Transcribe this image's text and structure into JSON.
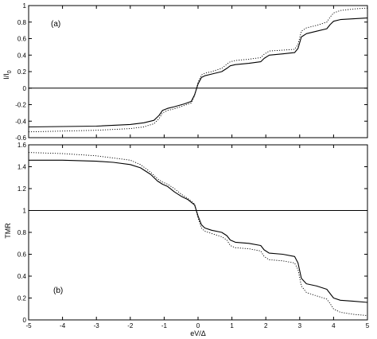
{
  "chart_data": [
    {
      "type": "line",
      "panel_label": "(a)",
      "xlabel": "",
      "ylabel": "I/I",
      "ylabel_subscript": "0",
      "xlim": [
        -5,
        5
      ],
      "ylim": [
        -0.6,
        1.0
      ],
      "x_ticks": [
        "-5",
        "-4",
        "-3",
        "-2",
        "-1",
        "0",
        "1",
        "2",
        "3",
        "4",
        "5"
      ],
      "y_ticks": [
        "-0.6",
        "-0.4",
        "-0.2",
        "0",
        "0.2",
        "0.4",
        "0.6",
        "0.8",
        "1"
      ],
      "grid": false,
      "reference_line_y": 0,
      "series": [
        {
          "style": "solid",
          "x": [
            -5,
            -4,
            -3,
            -2,
            -1.6,
            -1.3,
            -1.15,
            -1.05,
            -0.9,
            -0.7,
            -0.4,
            -0.2,
            -0.1,
            0,
            0.1,
            0.2,
            0.4,
            0.7,
            0.85,
            0.95,
            1.1,
            1.5,
            1.85,
            1.95,
            2.1,
            2.5,
            2.85,
            2.95,
            3.05,
            3.2,
            3.5,
            3.8,
            3.9,
            4.0,
            4.2,
            4.6,
            5
          ],
          "y": [
            -0.47,
            -0.465,
            -0.46,
            -0.44,
            -0.42,
            -0.39,
            -0.33,
            -0.27,
            -0.245,
            -0.225,
            -0.19,
            -0.16,
            -0.08,
            0.05,
            0.13,
            0.15,
            0.17,
            0.2,
            0.24,
            0.27,
            0.285,
            0.3,
            0.32,
            0.36,
            0.4,
            0.415,
            0.43,
            0.48,
            0.62,
            0.66,
            0.69,
            0.72,
            0.77,
            0.81,
            0.83,
            0.84,
            0.85
          ]
        },
        {
          "style": "dotted",
          "x": [
            -5,
            -4,
            -3,
            -2,
            -1.6,
            -1.3,
            -1.15,
            -1.05,
            -0.9,
            -0.7,
            -0.4,
            -0.2,
            -0.1,
            0,
            0.1,
            0.2,
            0.4,
            0.7,
            0.85,
            0.95,
            1.1,
            1.5,
            1.85,
            1.95,
            2.1,
            2.5,
            2.85,
            2.95,
            3.05,
            3.2,
            3.5,
            3.8,
            3.9,
            4.0,
            4.2,
            4.6,
            5
          ],
          "y": [
            -0.53,
            -0.52,
            -0.51,
            -0.49,
            -0.47,
            -0.43,
            -0.37,
            -0.3,
            -0.27,
            -0.25,
            -0.21,
            -0.18,
            -0.09,
            0.07,
            0.16,
            0.18,
            0.2,
            0.24,
            0.29,
            0.32,
            0.335,
            0.35,
            0.37,
            0.41,
            0.45,
            0.46,
            0.47,
            0.53,
            0.69,
            0.73,
            0.76,
            0.8,
            0.86,
            0.91,
            0.94,
            0.96,
            0.97
          ]
        }
      ]
    },
    {
      "type": "line",
      "panel_label": "(b)",
      "xlabel": "eV/Δ",
      "ylabel": "TMR",
      "xlim": [
        -5,
        5
      ],
      "ylim": [
        0,
        1.6
      ],
      "x_ticks": [
        "-5",
        "-4",
        "-3",
        "-2",
        "-1",
        "0",
        "1",
        "2",
        "3",
        "4",
        "5"
      ],
      "y_ticks": [
        "0",
        "0.2",
        "0.4",
        "0.6",
        "0.8",
        "1",
        "1.2",
        "1.4",
        "1.6"
      ],
      "grid": false,
      "reference_line_y": 1,
      "series": [
        {
          "style": "solid",
          "x": [
            -5,
            -4,
            -3,
            -2.5,
            -2,
            -1.7,
            -1.4,
            -1.2,
            -1.05,
            -0.9,
            -0.7,
            -0.5,
            -0.3,
            -0.1,
            0,
            0.1,
            0.2,
            0.4,
            0.7,
            0.85,
            0.95,
            1.1,
            1.5,
            1.85,
            1.95,
            2.1,
            2.5,
            2.85,
            2.95,
            3.05,
            3.2,
            3.5,
            3.8,
            3.9,
            4.0,
            4.2,
            4.6,
            5
          ],
          "y": [
            1.46,
            1.46,
            1.45,
            1.44,
            1.42,
            1.39,
            1.33,
            1.27,
            1.24,
            1.22,
            1.17,
            1.13,
            1.1,
            1.05,
            0.95,
            0.87,
            0.84,
            0.82,
            0.8,
            0.77,
            0.73,
            0.71,
            0.7,
            0.68,
            0.64,
            0.61,
            0.6,
            0.58,
            0.52,
            0.38,
            0.33,
            0.31,
            0.28,
            0.24,
            0.2,
            0.18,
            0.17,
            0.16
          ]
        },
        {
          "style": "dotted",
          "x": [
            -5,
            -4,
            -3,
            -2.5,
            -2,
            -1.7,
            -1.4,
            -1.2,
            -1.05,
            -0.9,
            -0.7,
            -0.5,
            -0.3,
            -0.1,
            0,
            0.1,
            0.2,
            0.4,
            0.7,
            0.85,
            0.95,
            1.1,
            1.5,
            1.85,
            1.95,
            2.1,
            2.5,
            2.85,
            2.95,
            3.05,
            3.2,
            3.5,
            3.8,
            3.9,
            4.0,
            4.2,
            4.6,
            5
          ],
          "y": [
            1.53,
            1.52,
            1.5,
            1.48,
            1.46,
            1.42,
            1.35,
            1.29,
            1.26,
            1.24,
            1.2,
            1.15,
            1.11,
            1.06,
            0.93,
            0.84,
            0.81,
            0.79,
            0.76,
            0.73,
            0.68,
            0.66,
            0.65,
            0.63,
            0.58,
            0.55,
            0.54,
            0.52,
            0.46,
            0.31,
            0.25,
            0.22,
            0.19,
            0.15,
            0.1,
            0.07,
            0.05,
            0.04
          ]
        }
      ]
    }
  ]
}
